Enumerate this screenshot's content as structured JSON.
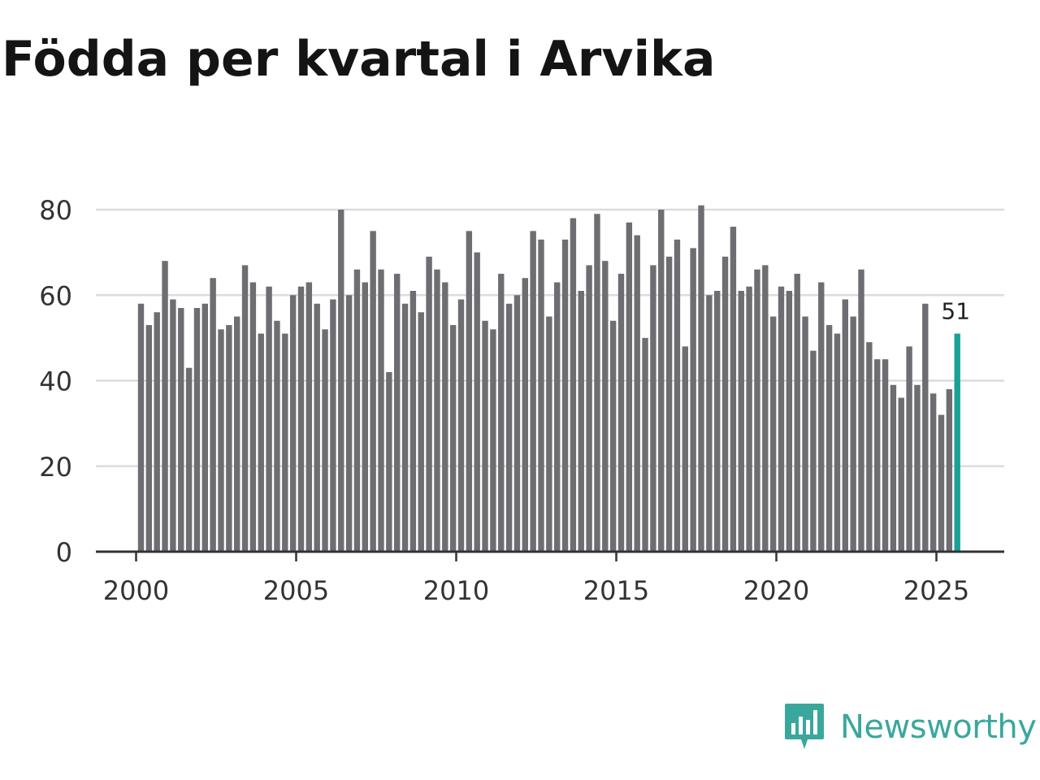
{
  "title": "Födda per kvartal i Arvika",
  "brand": {
    "name": "Newsworthy",
    "icon": "bar-chart-speech-bubble-icon",
    "color": "#3aa79d"
  },
  "chart_data": {
    "type": "bar",
    "x_start": "2000 Q1",
    "x_frequency": "quarterly",
    "x_ticks": [
      "2000",
      "2005",
      "2010",
      "2015",
      "2020",
      "2025"
    ],
    "values": [
      58,
      53,
      56,
      68,
      59,
      57,
      43,
      57,
      58,
      64,
      52,
      53,
      55,
      67,
      63,
      51,
      62,
      54,
      51,
      60,
      62,
      63,
      58,
      52,
      59,
      80,
      60,
      66,
      63,
      75,
      66,
      42,
      65,
      58,
      61,
      56,
      69,
      66,
      63,
      53,
      59,
      75,
      70,
      54,
      52,
      65,
      58,
      60,
      64,
      75,
      73,
      55,
      63,
      73,
      78,
      61,
      67,
      79,
      68,
      54,
      65,
      77,
      74,
      50,
      67,
      80,
      69,
      73,
      48,
      71,
      81,
      60,
      61,
      69,
      76,
      61,
      62,
      66,
      67,
      55,
      62,
      61,
      65,
      55,
      47,
      63,
      53,
      51,
      59,
      55,
      66,
      49,
      45,
      45,
      39,
      36,
      48,
      39,
      58,
      37,
      32,
      38,
      51
    ],
    "highlight_last_label": "51",
    "y_ticks": [
      "0",
      "20",
      "40",
      "60",
      "80"
    ],
    "ylim": [
      0,
      80
    ],
    "grid": true,
    "bar_color": "#6e6d72",
    "highlight_color": "#1aa197",
    "xlabel": "",
    "ylabel": ""
  }
}
